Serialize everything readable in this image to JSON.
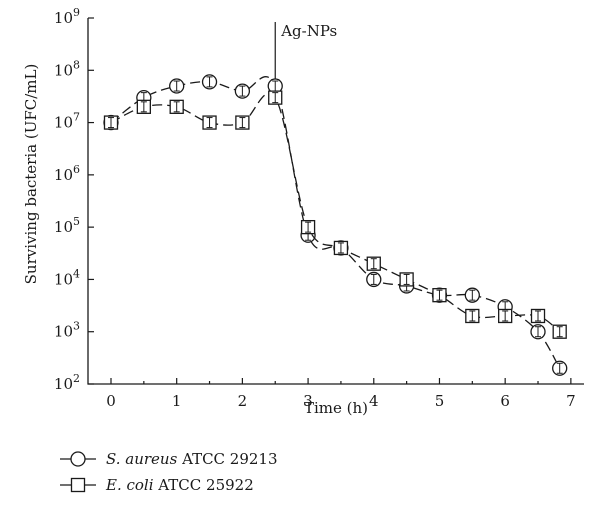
{
  "chart_data": {
    "type": "line",
    "xlabel": "Time (h)",
    "ylabel": "Surviving bacteria (UFC/mL)",
    "xlim": [
      -0.35,
      7.2
    ],
    "ylim": [
      100,
      1000000000
    ],
    "yscale": "log",
    "x_ticks": [
      "0",
      "1",
      "2",
      "3",
      "4",
      "5",
      "6",
      "7"
    ],
    "x_tick_values": [
      0,
      1,
      2,
      3,
      4,
      5,
      6,
      7
    ],
    "y_ticks": [
      {
        "base": "10",
        "exp": "2",
        "value": 100
      },
      {
        "base": "10",
        "exp": "3",
        "value": 1000
      },
      {
        "base": "10",
        "exp": "4",
        "value": 10000
      },
      {
        "base": "10",
        "exp": "5",
        "value": 100000
      },
      {
        "base": "10",
        "exp": "6",
        "value": 1000000
      },
      {
        "base": "10",
        "exp": "7",
        "value": 10000000
      },
      {
        "base": "10",
        "exp": "8",
        "value": 100000000
      },
      {
        "base": "10",
        "exp": "9",
        "value": 1000000000
      }
    ],
    "annotation": {
      "text": "Ag-NPs",
      "x": 2.5,
      "y": 150000000
    },
    "grid": false,
    "legend_position": "bottom-left",
    "series": [
      {
        "name_italic": "S. aureus",
        "name_rest": " ATCC 29213",
        "marker": "circle",
        "x": [
          0,
          0.5,
          1,
          1.5,
          2,
          2.5,
          3,
          3.5,
          4,
          4.5,
          5,
          5.5,
          6,
          6.5,
          6.83
        ],
        "y": [
          10000000,
          30000000,
          50000000,
          60000000,
          40000000,
          50000000,
          70000,
          40000,
          10000,
          7500,
          5000,
          5000,
          3000,
          1000,
          200
        ]
      },
      {
        "name_italic": "E. coli",
        "name_rest": " ATCC 25922",
        "marker": "square",
        "x": [
          0,
          0.5,
          1,
          1.5,
          2,
          2.5,
          3,
          3.5,
          4,
          4.5,
          5,
          5.5,
          6,
          6.5,
          6.83
        ],
        "y": [
          10000000,
          20000000,
          20000000,
          10000000,
          10000000,
          30000000,
          100000,
          40000,
          20000,
          10000,
          5000,
          2000,
          2000,
          2000,
          1000
        ]
      }
    ]
  }
}
